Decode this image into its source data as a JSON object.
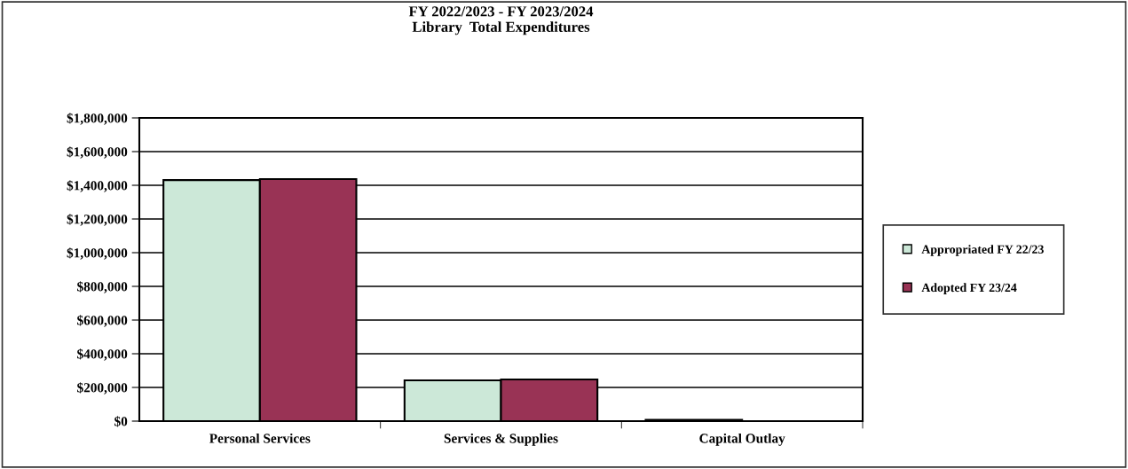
{
  "chart_data": {
    "type": "bar",
    "title": "FY 2022/2023 - FY 2023/2024\nLibrary  Total Expenditures",
    "categories": [
      "Personal Services",
      "Services & Supplies",
      "Capital Outlay"
    ],
    "series": [
      {
        "name": "Appropriated FY 22/23",
        "color": "#cce8d8",
        "values": [
          1431000,
          242000,
          8000
        ]
      },
      {
        "name": "Adopted FY 23/24",
        "color": "#993355",
        "values": [
          1437000,
          247000,
          null
        ]
      }
    ],
    "ylim": [
      0,
      1800000
    ],
    "yticks": [
      {
        "value": 0,
        "label": "$0"
      },
      {
        "value": 200000,
        "label": "$200,000"
      },
      {
        "value": 400000,
        "label": "$400,000"
      },
      {
        "value": 600000,
        "label": "$600,000"
      },
      {
        "value": 800000,
        "label": "$800,000"
      },
      {
        "value": 1000000,
        "label": "$1,000,000"
      },
      {
        "value": 1200000,
        "label": "$1,200,000"
      },
      {
        "value": 1400000,
        "label": "$1,400,000"
      },
      {
        "value": 1600000,
        "label": "$1,600,000"
      },
      {
        "value": 1800000,
        "label": "$1,800,000"
      }
    ],
    "grid": "y",
    "legend": "right"
  }
}
